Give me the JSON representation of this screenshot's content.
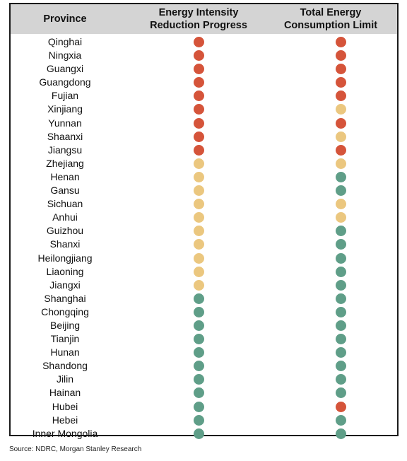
{
  "chart_data": {
    "type": "table",
    "columns": [
      "Province",
      "Energy Intensity\nReduction Progress",
      "Total Energy\nConsumption Limit"
    ],
    "status_colors": {
      "red": "#d5543a",
      "yellow": "#ebc77f",
      "green": "#5f9e88"
    },
    "rows": [
      {
        "province": "Qinghai",
        "energy_intensity": "red",
        "total_energy": "red"
      },
      {
        "province": "Ningxia",
        "energy_intensity": "red",
        "total_energy": "red"
      },
      {
        "province": "Guangxi",
        "energy_intensity": "red",
        "total_energy": "red"
      },
      {
        "province": "Guangdong",
        "energy_intensity": "red",
        "total_energy": "red"
      },
      {
        "province": "Fujian",
        "energy_intensity": "red",
        "total_energy": "red"
      },
      {
        "province": "Xinjiang",
        "energy_intensity": "red",
        "total_energy": "yellow"
      },
      {
        "province": "Yunnan",
        "energy_intensity": "red",
        "total_energy": "red"
      },
      {
        "province": "Shaanxi",
        "energy_intensity": "red",
        "total_energy": "yellow"
      },
      {
        "province": "Jiangsu",
        "energy_intensity": "red",
        "total_energy": "red"
      },
      {
        "province": "Zhejiang",
        "energy_intensity": "yellow",
        "total_energy": "yellow"
      },
      {
        "province": "Henan",
        "energy_intensity": "yellow",
        "total_energy": "green"
      },
      {
        "province": "Gansu",
        "energy_intensity": "yellow",
        "total_energy": "green"
      },
      {
        "province": "Sichuan",
        "energy_intensity": "yellow",
        "total_energy": "yellow"
      },
      {
        "province": "Anhui",
        "energy_intensity": "yellow",
        "total_energy": "yellow"
      },
      {
        "province": "Guizhou",
        "energy_intensity": "yellow",
        "total_energy": "green"
      },
      {
        "province": "Shanxi",
        "energy_intensity": "yellow",
        "total_energy": "green"
      },
      {
        "province": "Heilongjiang",
        "energy_intensity": "yellow",
        "total_energy": "green"
      },
      {
        "province": "Liaoning",
        "energy_intensity": "yellow",
        "total_energy": "green"
      },
      {
        "province": "Jiangxi",
        "energy_intensity": "yellow",
        "total_energy": "green"
      },
      {
        "province": "Shanghai",
        "energy_intensity": "green",
        "total_energy": "green"
      },
      {
        "province": "Chongqing",
        "energy_intensity": "green",
        "total_energy": "green"
      },
      {
        "province": "Beijing",
        "energy_intensity": "green",
        "total_energy": "green"
      },
      {
        "province": "Tianjin",
        "energy_intensity": "green",
        "total_energy": "green"
      },
      {
        "province": "Hunan",
        "energy_intensity": "green",
        "total_energy": "green"
      },
      {
        "province": "Shandong",
        "energy_intensity": "green",
        "total_energy": "green"
      },
      {
        "province": "Jilin",
        "energy_intensity": "green",
        "total_energy": "green"
      },
      {
        "province": "Hainan",
        "energy_intensity": "green",
        "total_energy": "green"
      },
      {
        "province": "Hubei",
        "energy_intensity": "green",
        "total_energy": "red"
      },
      {
        "province": "Hebei",
        "energy_intensity": "green",
        "total_energy": "green"
      },
      {
        "province": "Inner Mongolia",
        "energy_intensity": "green",
        "total_energy": "green"
      }
    ]
  },
  "source": "Source: NDRC, Morgan Stanley Research"
}
